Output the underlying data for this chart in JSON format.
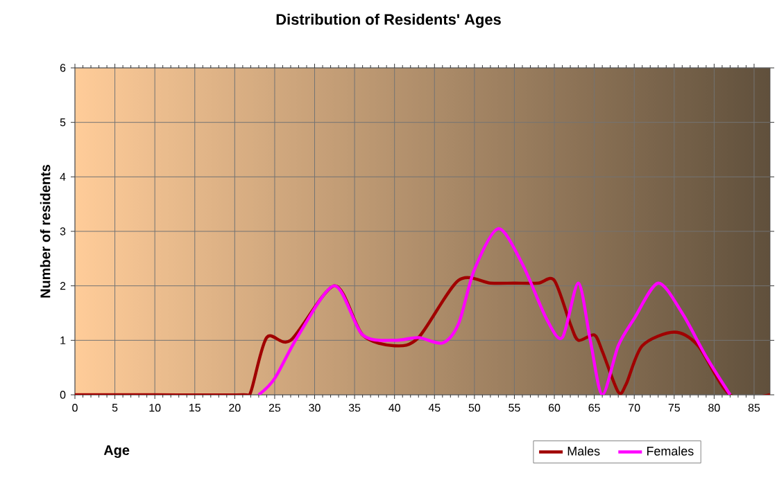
{
  "chart_data": {
    "type": "line",
    "title": "Distribution of Residents' Ages",
    "xlabel": "Age",
    "ylabel": "Number of residents",
    "xlim": [
      0,
      87
    ],
    "xticks": [
      0,
      5,
      10,
      15,
      20,
      25,
      30,
      35,
      40,
      45,
      50,
      55,
      60,
      65,
      70,
      75,
      80,
      85
    ],
    "ylim": [
      0,
      6
    ],
    "yticks": [
      0,
      1,
      2,
      3,
      4,
      5,
      6
    ],
    "grid": true,
    "legend": "bottom right",
    "series": [
      {
        "name": "Males",
        "color": "#a00000",
        "x": [
          0,
          10,
          21,
          22,
          24,
          27,
          32.5,
          36,
          40,
          43,
          48,
          52,
          55,
          58,
          60,
          62,
          63,
          65,
          66,
          68,
          69,
          71,
          75,
          78,
          82,
          87
        ],
        "values": [
          0,
          0,
          0,
          0.05,
          1.05,
          1,
          2,
          1.1,
          0.9,
          1.05,
          2.1,
          2.05,
          2.05,
          2.05,
          2.1,
          1.3,
          1,
          1.1,
          0.8,
          0.05,
          0.2,
          0.9,
          1.15,
          0.9,
          0,
          0
        ]
      },
      {
        "name": "Females",
        "color": "#ff00ff",
        "x": [
          23,
          25,
          28,
          32.5,
          36,
          40,
          43,
          46,
          48,
          50,
          53,
          56,
          59,
          61,
          63,
          64.5,
          66,
          68,
          70,
          73,
          76,
          79,
          82
        ],
        "values": [
          0,
          0.3,
          1.1,
          2,
          1.1,
          1,
          1.05,
          0.95,
          1.3,
          2.3,
          3.05,
          2.4,
          1.4,
          1.05,
          2.05,
          1,
          0,
          0.9,
          1.4,
          2.05,
          1.5,
          0.7,
          0
        ]
      }
    ]
  }
}
